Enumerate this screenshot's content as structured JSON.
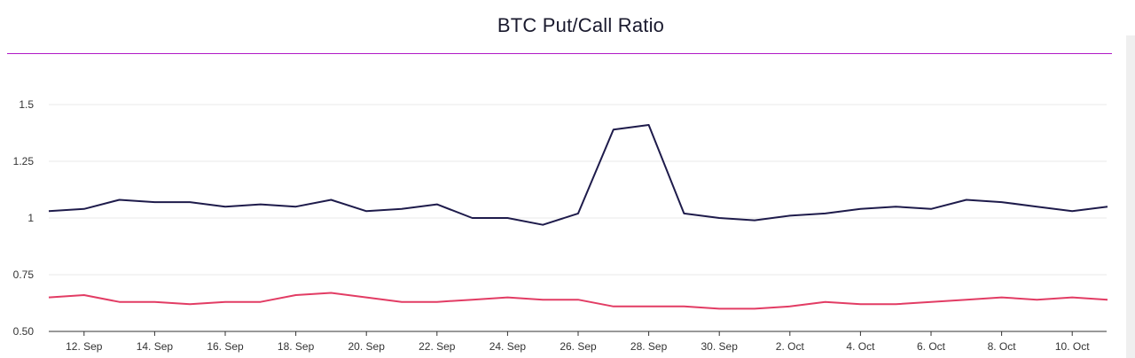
{
  "chart_data": {
    "type": "line",
    "title": "BTC Put/Call Ratio",
    "xlabel": "",
    "ylabel": "",
    "x": [
      "11 Sep",
      "12 Sep",
      "13 Sep",
      "14 Sep",
      "15 Sep",
      "16 Sep",
      "17 Sep",
      "18 Sep",
      "19 Sep",
      "20 Sep",
      "21 Sep",
      "22 Sep",
      "23 Sep",
      "24 Sep",
      "25 Sep",
      "26 Sep",
      "27 Sep",
      "28 Sep",
      "29 Sep",
      "30 Sep",
      "1 Oct",
      "2 Oct",
      "3 Oct",
      "4 Oct",
      "5 Oct",
      "6 Oct",
      "7 Oct",
      "8 Oct",
      "9 Oct",
      "10 Oct",
      "11 Oct"
    ],
    "x_tick_labels": [
      "12. Sep",
      "14. Sep",
      "16. Sep",
      "18. Sep",
      "20. Sep",
      "22. Sep",
      "24. Sep",
      "26. Sep",
      "28. Sep",
      "30. Sep",
      "2. Oct",
      "4. Oct",
      "6. Oct",
      "8. Oct",
      "10. Oct"
    ],
    "y_tick_labels": [
      "0.50",
      "0.75",
      "1",
      "1.25",
      "1.5"
    ],
    "ylim": [
      0.5,
      1.5
    ],
    "grid": true,
    "legend": "none",
    "series": [
      {
        "color": "#1e1b4b",
        "values": [
          1.03,
          1.04,
          1.08,
          1.07,
          1.07,
          1.05,
          1.06,
          1.05,
          1.08,
          1.03,
          1.04,
          1.06,
          1.0,
          1.0,
          0.97,
          1.02,
          1.39,
          1.41,
          1.02,
          1.0,
          0.99,
          1.01,
          1.02,
          1.04,
          1.05,
          1.04,
          1.08,
          1.07,
          1.05,
          1.03,
          1.05
        ]
      },
      {
        "color": "#e23c64",
        "values": [
          0.65,
          0.66,
          0.63,
          0.63,
          0.62,
          0.63,
          0.63,
          0.66,
          0.67,
          0.65,
          0.63,
          0.63,
          0.64,
          0.65,
          0.64,
          0.64,
          0.61,
          0.61,
          0.61,
          0.6,
          0.6,
          0.61,
          0.63,
          0.62,
          0.62,
          0.63,
          0.64,
          0.65,
          0.64,
          0.65,
          0.64
        ]
      }
    ]
  },
  "colors": {
    "divider": "#b01ac6",
    "grid": "#e8e8e8",
    "axis": "#333333"
  }
}
